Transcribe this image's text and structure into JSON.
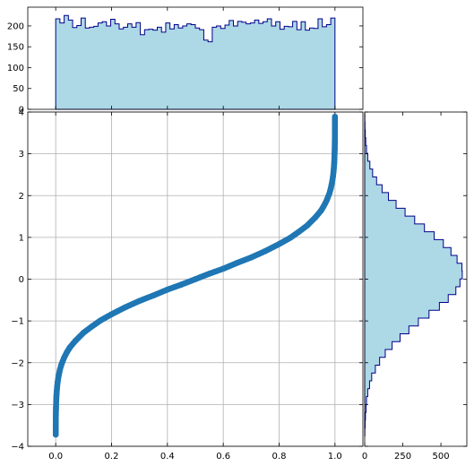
{
  "chart_data": [
    {
      "id": "top_hist",
      "type": "histogram",
      "orientation": "vertical",
      "title": "",
      "xlabel": "",
      "ylabel": "",
      "xlim": [
        -0.1,
        1.1
      ],
      "ylim": [
        0,
        245
      ],
      "yticks": [
        0,
        50,
        100,
        150,
        200
      ],
      "bin_range": [
        0.0,
        1.0
      ],
      "counts": [
        217,
        207,
        225,
        214,
        196,
        201,
        219,
        195,
        197,
        199,
        207,
        210,
        200,
        216,
        205,
        193,
        197,
        205,
        197,
        208,
        179,
        191,
        192,
        190,
        197,
        185,
        207,
        193,
        203,
        195,
        200,
        205,
        203,
        195,
        191,
        166,
        162,
        197,
        200,
        194,
        202,
        213,
        200,
        211,
        209,
        205,
        207,
        214,
        206,
        210,
        217,
        200,
        210,
        192,
        199,
        198,
        211,
        191,
        210,
        190,
        195,
        194,
        217,
        198,
        203,
        219
      ],
      "colors": {
        "fill": "#add8e6",
        "edge": "#00008b"
      }
    },
    {
      "id": "scatter",
      "type": "scatter",
      "title": "",
      "xlabel": "",
      "ylabel": "",
      "xlim": [
        -0.1,
        1.1
      ],
      "ylim": [
        -4,
        4
      ],
      "xticks": [
        0.0,
        0.2,
        0.4,
        0.6,
        0.8,
        1.0
      ],
      "xtick_labels": [
        "0.0",
        "0.2",
        "0.4",
        "0.6",
        "0.8",
        "1.0"
      ],
      "yticks": [
        -4,
        -3,
        -2,
        -1,
        0,
        1,
        2,
        3,
        4
      ],
      "ytick_labels": [
        "−4",
        "−3",
        "−2",
        "−1",
        "0",
        "1",
        "2",
        "3",
        "4"
      ],
      "grid": true,
      "relation": "y = inverse standard normal CDF of x",
      "x": [
        0.0001,
        0.0002,
        0.0005,
        0.001,
        0.002,
        0.003,
        0.005,
        0.007,
        0.01,
        0.015,
        0.02,
        0.03,
        0.04,
        0.05,
        0.07,
        0.1,
        0.13,
        0.16,
        0.2,
        0.25,
        0.3,
        0.35,
        0.4,
        0.45,
        0.5,
        0.55,
        0.6,
        0.65,
        0.7,
        0.75,
        0.8,
        0.84,
        0.87,
        0.9,
        0.93,
        0.95,
        0.96,
        0.97,
        0.98,
        0.985,
        0.99,
        0.993,
        0.995,
        0.997,
        0.998,
        0.999,
        0.9995,
        0.9998,
        0.9999,
        0.99995
      ],
      "y": [
        -3.72,
        -3.54,
        -3.29,
        -3.09,
        -2.88,
        -2.75,
        -2.58,
        -2.46,
        -2.33,
        -2.17,
        -2.05,
        -1.88,
        -1.75,
        -1.64,
        -1.48,
        -1.28,
        -1.13,
        -0.99,
        -0.84,
        -0.67,
        -0.52,
        -0.39,
        -0.25,
        -0.13,
        0.0,
        0.13,
        0.25,
        0.39,
        0.52,
        0.67,
        0.84,
        0.99,
        1.13,
        1.28,
        1.48,
        1.64,
        1.75,
        1.88,
        2.05,
        2.17,
        2.33,
        2.46,
        2.58,
        2.75,
        2.88,
        3.09,
        3.29,
        3.54,
        3.72,
        3.89
      ],
      "colors": {
        "marker": "#1f77b4"
      }
    },
    {
      "id": "right_hist",
      "type": "histogram",
      "orientation": "horizontal",
      "title": "",
      "xlabel": "",
      "ylabel": "",
      "xlim": [
        0,
        670
      ],
      "xticks": [
        0,
        250,
        500
      ],
      "xtick_labels": [
        "0",
        "250",
        "500"
      ],
      "ylim": [
        -4,
        4
      ],
      "bin_range": [
        -3.75,
        3.95
      ],
      "counts": [
        1,
        3,
        5,
        9,
        12,
        20,
        32,
        46,
        70,
        98,
        135,
        180,
        232,
        290,
        352,
        422,
        490,
        548,
        598,
        625,
        640,
        638,
        606,
        566,
        516,
        456,
        392,
        328,
        265,
        206,
        156,
        114,
        78,
        52,
        34,
        20,
        12,
        7,
        4,
        2,
        1
      ],
      "colors": {
        "fill": "#add8e6",
        "edge": "#00008b"
      }
    }
  ]
}
